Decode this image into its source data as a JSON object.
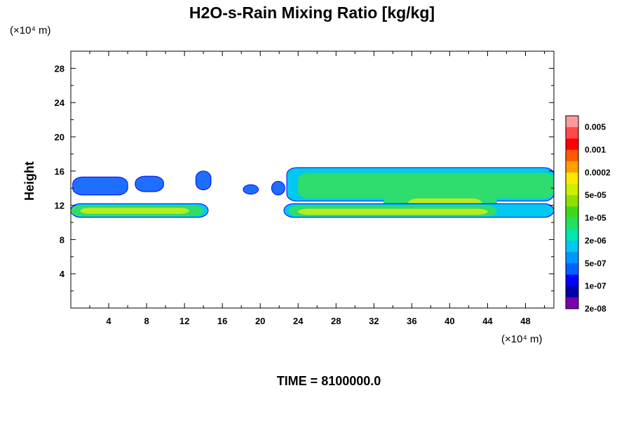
{
  "chart_data": {
    "type": "heatmap",
    "title": "H2O-s-Rain Mixing Ratio [kg/kg]",
    "xlabel": "",
    "ylabel": "Height",
    "x_scale_label": "(×10⁴ m)",
    "y_scale_label": "(×10⁴ m)",
    "xlim": [
      0,
      51
    ],
    "ylim": [
      0,
      30
    ],
    "x_ticks": [
      "4",
      "8",
      "12",
      "16",
      "20",
      "24",
      "28",
      "32",
      "36",
      "40",
      "44",
      "48"
    ],
    "y_ticks": [
      "4",
      "8",
      "12",
      "16",
      "20",
      "24",
      "28"
    ],
    "footer": "TIME = 8100000.0",
    "colorbar": {
      "labels": [
        "0.005",
        "0.001",
        "0.0002",
        "5e-05",
        "1e-05",
        "2e-06",
        "5e-07",
        "1e-07",
        "2e-08"
      ],
      "colors_top_to_bottom": [
        "#ff9a9a",
        "#ff4a4a",
        "#ff0000",
        "#ff5a00",
        "#ffa000",
        "#ffe800",
        "#ccee00",
        "#8ee000",
        "#3ed81a",
        "#22e060",
        "#00e8b0",
        "#00c8f0",
        "#0096ff",
        "#0060ff",
        "#0000ff",
        "#0000a8",
        "#7a00b0"
      ]
    },
    "regions": [
      {
        "x": [
          0.2,
          6.0
        ],
        "y": [
          13.2,
          15.3
        ],
        "level": 6
      },
      {
        "x": [
          6.8,
          9.8
        ],
        "y": [
          13.6,
          15.4
        ],
        "level": 6
      },
      {
        "x": [
          13.2,
          14.8
        ],
        "y": [
          13.8,
          16.0
        ],
        "level": 6
      },
      {
        "x": [
          18.2,
          19.8
        ],
        "y": [
          13.3,
          14.4
        ],
        "level": 6
      },
      {
        "x": [
          21.2,
          22.6
        ],
        "y": [
          13.2,
          14.8
        ],
        "level": 6
      },
      {
        "x": [
          22.8,
          51.0
        ],
        "y": [
          12.5,
          16.4
        ],
        "level": 5
      },
      {
        "x": [
          24.0,
          51.0
        ],
        "y": [
          12.8,
          15.8
        ],
        "level": 3
      },
      {
        "x": [
          33.0,
          45.0
        ],
        "y": [
          10.8,
          13.2
        ],
        "level": 3
      },
      {
        "x": [
          35.5,
          43.5
        ],
        "y": [
          11.0,
          12.8
        ],
        "level": 2
      },
      {
        "x": [
          0.0,
          14.5
        ],
        "y": [
          10.6,
          12.2
        ],
        "level": 5
      },
      {
        "x": [
          0.0,
          14.0
        ],
        "y": [
          10.7,
          12.0
        ],
        "level": 3
      },
      {
        "x": [
          1.0,
          12.5
        ],
        "y": [
          11.0,
          11.7
        ],
        "level": 2
      },
      {
        "x": [
          22.5,
          51.0
        ],
        "y": [
          10.6,
          12.2
        ],
        "level": 5
      },
      {
        "x": [
          23.0,
          45.0
        ],
        "y": [
          10.7,
          12.0
        ],
        "level": 3
      },
      {
        "x": [
          24.0,
          44.0
        ],
        "y": [
          10.9,
          11.6
        ],
        "level": 2
      }
    ],
    "grid": false
  }
}
